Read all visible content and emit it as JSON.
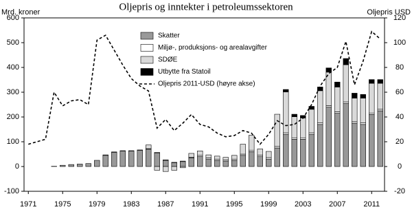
{
  "chart_data": {
    "type": "bar",
    "title": "Oljepris og inntekter i petroleumssektoren",
    "y_label": "Mrd. kroner",
    "y2_label": "Oljepris USD",
    "x": [
      1971,
      1972,
      1973,
      1974,
      1975,
      1976,
      1977,
      1978,
      1979,
      1980,
      1981,
      1982,
      1983,
      1984,
      1985,
      1986,
      1987,
      1988,
      1989,
      1990,
      1991,
      1992,
      1993,
      1994,
      1995,
      1996,
      1997,
      1998,
      1999,
      2000,
      2001,
      2002,
      2003,
      2004,
      2005,
      2006,
      2007,
      2008,
      2009,
      2010,
      2011,
      2012
    ],
    "xlim": [
      1970.5,
      2012.5
    ],
    "xticks": [
      1971,
      1975,
      1979,
      1983,
      1987,
      1991,
      1995,
      1999,
      2003,
      2007,
      2011
    ],
    "ylim": [
      -100,
      600
    ],
    "yticks": [
      -100,
      0,
      100,
      200,
      300,
      400,
      500,
      600
    ],
    "y2lim": [
      -20,
      120
    ],
    "y2ticks": [
      -20,
      0,
      20,
      40,
      60,
      80,
      100,
      120
    ],
    "series": [
      {
        "name": "Skatter",
        "color": "#999999",
        "values": [
          0,
          0,
          0,
          1,
          5,
          8,
          10,
          12,
          25,
          45,
          57,
          62,
          62,
          65,
          70,
          55,
          25,
          15,
          20,
          35,
          40,
          30,
          25,
          22,
          25,
          45,
          60,
          40,
          30,
          75,
          130,
          110,
          110,
          130,
          170,
          240,
          215,
          255,
          175,
          170,
          210,
          225
        ]
      },
      {
        "name": "Miljø-, produksjons- og arealavgifter",
        "color": "#ffffff",
        "values": [
          0,
          0,
          0,
          0,
          0,
          0,
          0,
          0,
          0,
          2,
          2,
          2,
          2,
          2,
          2,
          2,
          2,
          2,
          2,
          3,
          5,
          5,
          5,
          5,
          5,
          5,
          6,
          6,
          6,
          6,
          6,
          6,
          6,
          6,
          6,
          6,
          6,
          6,
          6,
          6,
          6,
          6
        ]
      },
      {
        "name": "SDØE",
        "color": "#d9d9d9",
        "values": [
          0,
          0,
          0,
          0,
          0,
          0,
          0,
          0,
          0,
          0,
          0,
          0,
          0,
          0,
          15,
          -15,
          -20,
          -15,
          -5,
          15,
          18,
          12,
          12,
          10,
          15,
          40,
          60,
          25,
          25,
          130,
          165,
          85,
          80,
          95,
          130,
          135,
          100,
          150,
          95,
          100,
          120,
          105
        ]
      },
      {
        "name": "Utbytte fra Statoil",
        "color": "#000000",
        "values": [
          0,
          0,
          0,
          0,
          0,
          0,
          0,
          0,
          0,
          0,
          0,
          0,
          0,
          0,
          0,
          0,
          0,
          0,
          0,
          0,
          0,
          0,
          0,
          0,
          0,
          0,
          0,
          0,
          0,
          0,
          10,
          10,
          10,
          12,
          15,
          17,
          20,
          25,
          20,
          15,
          15,
          15
        ]
      },
      {
        "name": "Oljepris 2011-USD (høyre akse)",
        "color": "#000000",
        "type": "line",
        "axis": "y2",
        "values": [
          18,
          20,
          22,
          60,
          49,
          53,
          54,
          50,
          102,
          106,
          94,
          82,
          71,
          65,
          61,
          31,
          38,
          29,
          35,
          42,
          34,
          32,
          27,
          24,
          25,
          29,
          27,
          18,
          26,
          37,
          33,
          34,
          39,
          50,
          65,
          75,
          80,
          101,
          66,
          85,
          109,
          103
        ]
      }
    ]
  }
}
